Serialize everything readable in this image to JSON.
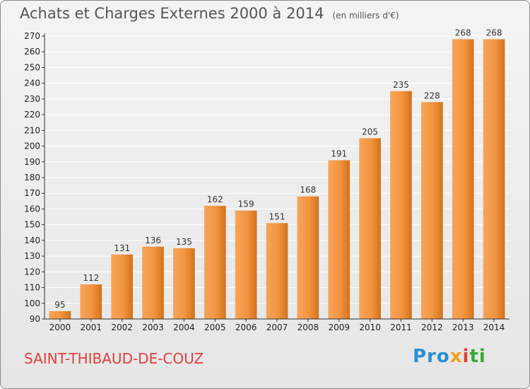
{
  "header": {
    "title": "Achats et Charges Externes 2000 à 2014",
    "unit": "(en milliers d'€)"
  },
  "footer": {
    "place": "SAINT-THIBAUD-DE-COUZ",
    "logo_parts": [
      "Pro",
      "x",
      "i",
      "ti"
    ]
  },
  "colors": {
    "bar_light": "#f7a55b",
    "bar_dark": "#d4721c",
    "axis": "#333333",
    "grid": "#ffffff"
  },
  "chart_data": {
    "type": "bar",
    "title": "Achats et Charges Externes 2000 à 2014",
    "subtitle": "(en milliers d'€)",
    "xlabel": "",
    "ylabel": "",
    "categories": [
      "2000",
      "2001",
      "2002",
      "2003",
      "2004",
      "2005",
      "2006",
      "2007",
      "2008",
      "2009",
      "2010",
      "2011",
      "2012",
      "2013",
      "2014"
    ],
    "values": [
      95,
      112,
      131,
      136,
      135,
      162,
      159,
      151,
      168,
      191,
      205,
      235,
      228,
      268,
      268
    ],
    "ylim": [
      90,
      270
    ],
    "yticks": [
      90,
      100,
      110,
      120,
      130,
      140,
      150,
      160,
      170,
      180,
      190,
      200,
      210,
      220,
      230,
      240,
      250,
      260,
      270
    ],
    "grid": true,
    "data_labels": true
  }
}
